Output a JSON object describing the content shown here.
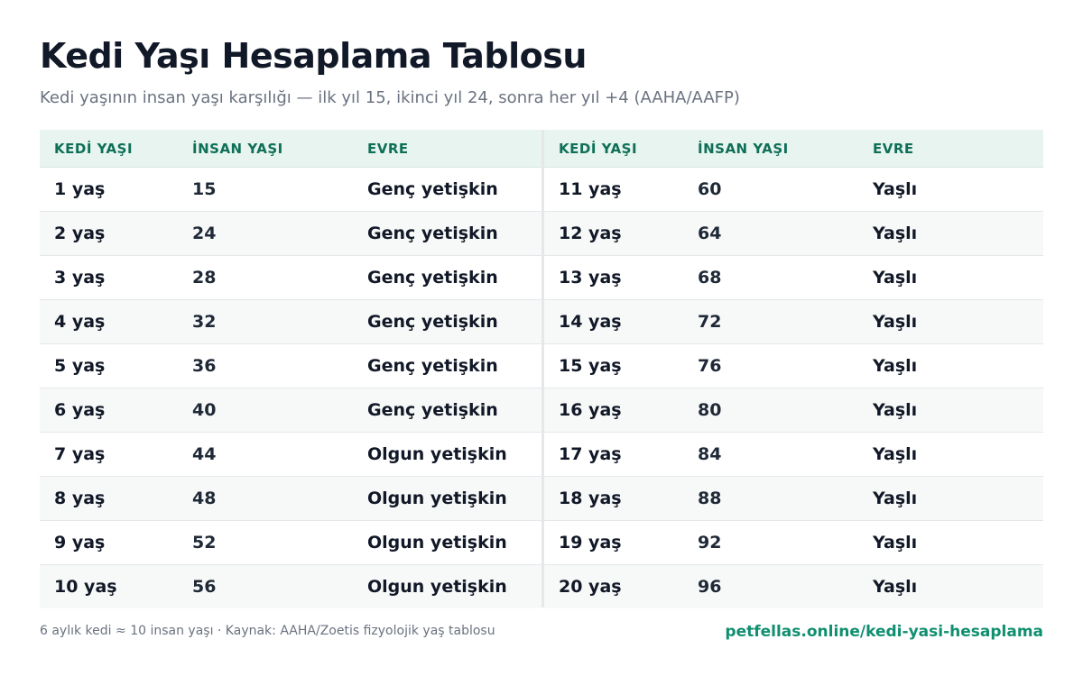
{
  "title": "Kedi Yaşı Hesaplama Tablosu",
  "subtitle": "Kedi yaşının insan yaşı karşılığı — ilk yıl 15, ikinci yıl 24, sonra her yıl +4 (AAHA/AAFP)",
  "columns": [
    "KEDİ YAŞI",
    "İNSAN YAŞI",
    "EVRE"
  ],
  "left_rows": [
    {
      "cat_age": "1 yaş",
      "human_age": "15",
      "stage": "Genç yetişkin"
    },
    {
      "cat_age": "2 yaş",
      "human_age": "24",
      "stage": "Genç yetişkin"
    },
    {
      "cat_age": "3 yaş",
      "human_age": "28",
      "stage": "Genç yetişkin"
    },
    {
      "cat_age": "4 yaş",
      "human_age": "32",
      "stage": "Genç yetişkin"
    },
    {
      "cat_age": "5 yaş",
      "human_age": "36",
      "stage": "Genç yetişkin"
    },
    {
      "cat_age": "6 yaş",
      "human_age": "40",
      "stage": "Genç yetişkin"
    },
    {
      "cat_age": "7 yaş",
      "human_age": "44",
      "stage": "Olgun yetişkin"
    },
    {
      "cat_age": "8 yaş",
      "human_age": "48",
      "stage": "Olgun yetişkin"
    },
    {
      "cat_age": "9 yaş",
      "human_age": "52",
      "stage": "Olgun yetişkin"
    },
    {
      "cat_age": "10 yaş",
      "human_age": "56",
      "stage": "Olgun yetişkin"
    }
  ],
  "right_rows": [
    {
      "cat_age": "11 yaş",
      "human_age": "60",
      "stage": "Yaşlı"
    },
    {
      "cat_age": "12 yaş",
      "human_age": "64",
      "stage": "Yaşlı"
    },
    {
      "cat_age": "13 yaş",
      "human_age": "68",
      "stage": "Yaşlı"
    },
    {
      "cat_age": "14 yaş",
      "human_age": "72",
      "stage": "Yaşlı"
    },
    {
      "cat_age": "15 yaş",
      "human_age": "76",
      "stage": "Yaşlı"
    },
    {
      "cat_age": "16 yaş",
      "human_age": "80",
      "stage": "Yaşlı"
    },
    {
      "cat_age": "17 yaş",
      "human_age": "84",
      "stage": "Yaşlı"
    },
    {
      "cat_age": "18 yaş",
      "human_age": "88",
      "stage": "Yaşlı"
    },
    {
      "cat_age": "19 yaş",
      "human_age": "92",
      "stage": "Yaşlı"
    },
    {
      "cat_age": "20 yaş",
      "human_age": "96",
      "stage": "Yaşlı"
    }
  ],
  "footer": {
    "note": "6 aylık kedi ≈ 10 insan yaşı · Kaynak: AAHA/Zoetis fizyolojik yaş tablosu",
    "link": "petfellas.online/kedi-yasi-hesaplama"
  },
  "colors": {
    "header_bg": "#e7f4ef",
    "header_text": "#0f6f57",
    "link": "#0f8f6f",
    "alt_row": "#f7f9f8"
  }
}
